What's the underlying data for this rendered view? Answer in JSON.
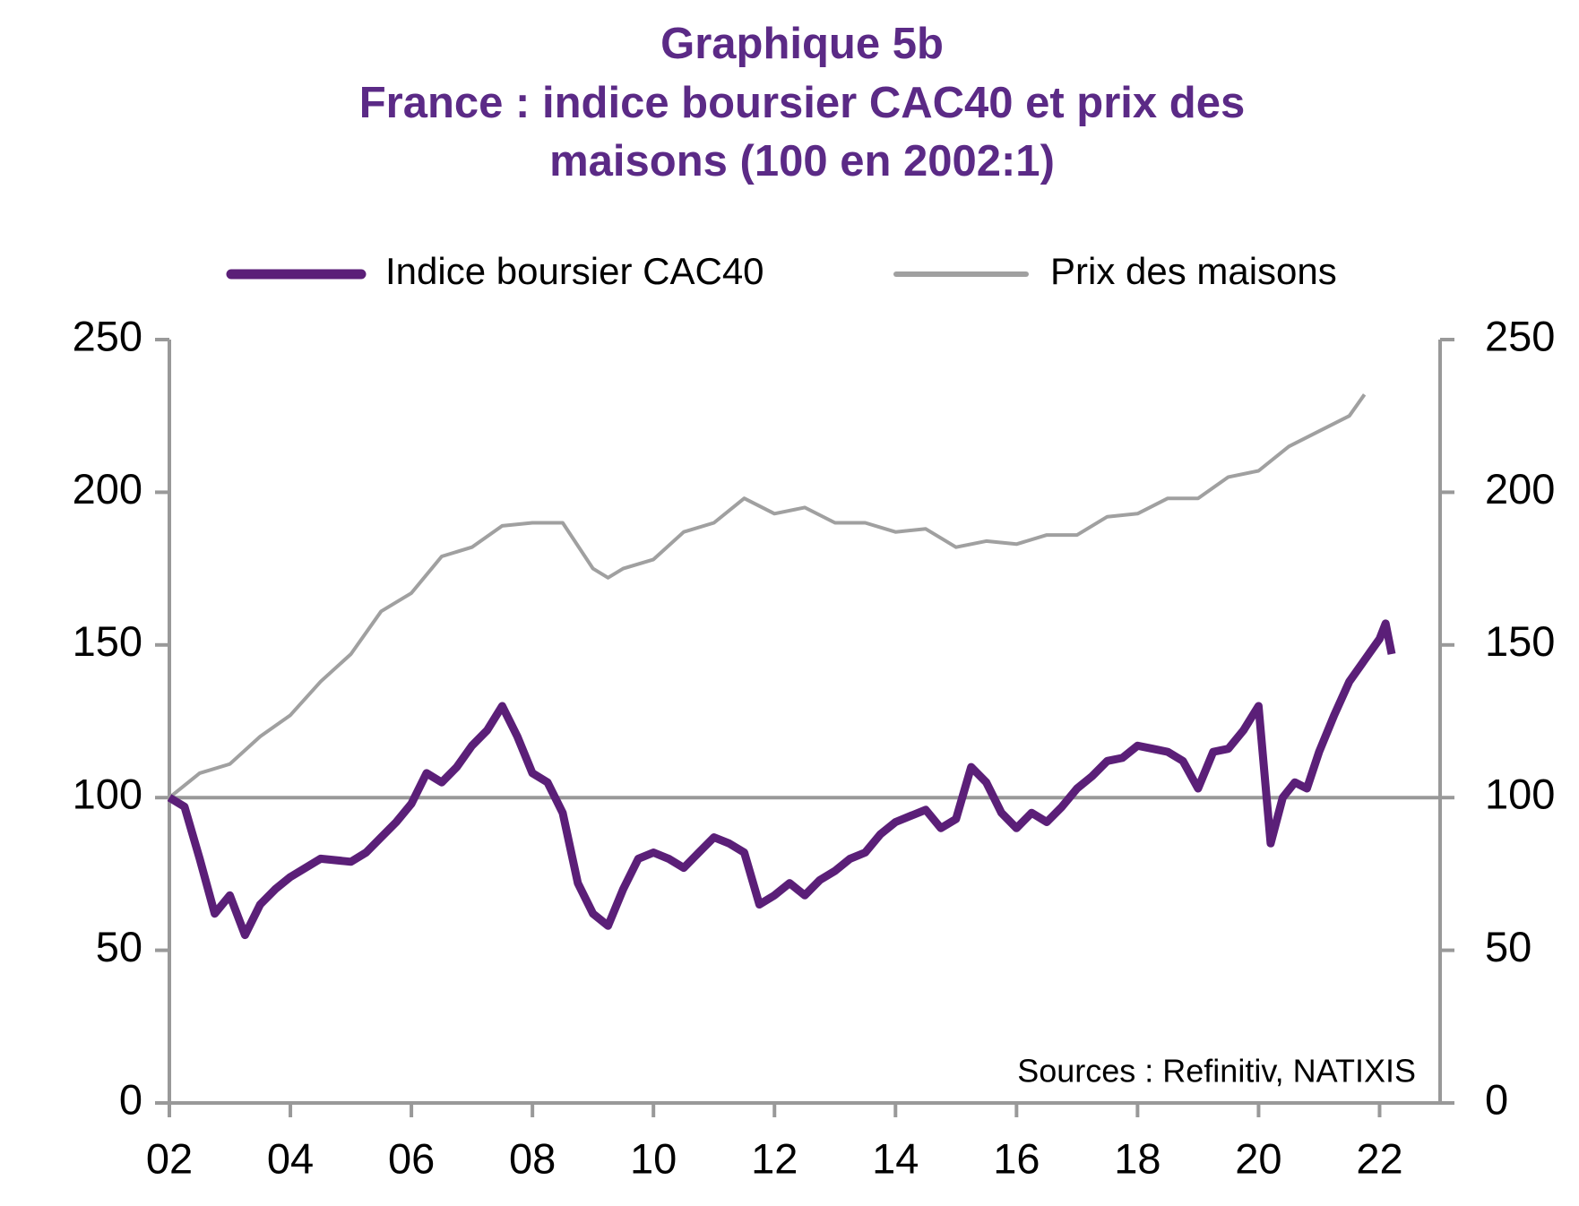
{
  "chart_data": {
    "type": "line",
    "title": [
      "Graphique 5b",
      "France : indice boursier CAC40 et prix des",
      "maisons (100 en 2002:1)"
    ],
    "annotation": "Sources : Refinitiv, NATIXIS",
    "legend": "top",
    "reference_line": 100,
    "reference_color": "#999999",
    "xlim": [
      2002,
      2023
    ],
    "xticks": [
      {
        "value": 2002,
        "label": "02"
      },
      {
        "value": 2004,
        "label": "04"
      },
      {
        "value": 2006,
        "label": "06"
      },
      {
        "value": 2008,
        "label": "08"
      },
      {
        "value": 2010,
        "label": "10"
      },
      {
        "value": 2012,
        "label": "12"
      },
      {
        "value": 2014,
        "label": "14"
      },
      {
        "value": 2016,
        "label": "16"
      },
      {
        "value": 2018,
        "label": "18"
      },
      {
        "value": 2020,
        "label": "20"
      },
      {
        "value": 2022,
        "label": "22"
      }
    ],
    "ylim": [
      0,
      250
    ],
    "yticks": [
      0,
      50,
      100,
      150,
      200,
      250
    ],
    "y2lim": [
      0,
      250
    ],
    "y2ticks": [
      0,
      50,
      100,
      150,
      200,
      250
    ],
    "series": [
      {
        "name": "Indice boursier CAC40",
        "color": "#5b1f78",
        "width": 9,
        "x": [
          2002,
          2002.25,
          2002.5,
          2002.75,
          2003,
          2003.25,
          2003.5,
          2003.75,
          2004,
          2004.5,
          2005,
          2005.25,
          2005.5,
          2005.75,
          2006,
          2006.25,
          2006.5,
          2006.75,
          2007,
          2007.25,
          2007.5,
          2007.75,
          2008,
          2008.25,
          2008.5,
          2008.75,
          2009,
          2009.25,
          2009.5,
          2009.75,
          2010,
          2010.25,
          2010.5,
          2010.75,
          2011,
          2011.25,
          2011.5,
          2011.75,
          2012,
          2012.25,
          2012.5,
          2012.75,
          2013,
          2013.25,
          2013.5,
          2013.75,
          2014,
          2014.25,
          2014.5,
          2014.75,
          2015,
          2015.25,
          2015.5,
          2015.75,
          2016,
          2016.25,
          2016.5,
          2016.75,
          2017,
          2017.25,
          2017.5,
          2017.75,
          2018,
          2018.25,
          2018.5,
          2018.75,
          2019,
          2019.25,
          2019.5,
          2019.75,
          2020,
          2020.2,
          2020.4,
          2020.6,
          2020.8,
          2021,
          2021.25,
          2021.5,
          2021.75,
          2022,
          2022.1,
          2022.2
        ],
        "values": [
          100,
          97,
          80,
          62,
          68,
          55,
          65,
          70,
          74,
          80,
          79,
          82,
          87,
          92,
          98,
          108,
          105,
          110,
          117,
          122,
          130,
          120,
          108,
          105,
          95,
          72,
          62,
          58,
          70,
          80,
          82,
          80,
          77,
          82,
          87,
          85,
          82,
          65,
          68,
          72,
          68,
          73,
          76,
          80,
          82,
          88,
          92,
          94,
          96,
          90,
          93,
          110,
          105,
          95,
          90,
          95,
          92,
          97,
          103,
          107,
          112,
          113,
          117,
          116,
          115,
          112,
          103,
          115,
          116,
          122,
          130,
          85,
          100,
          105,
          103,
          115,
          127,
          138,
          145,
          152,
          157,
          147
        ]
      },
      {
        "name": "Prix des maisons",
        "color": "#a0a0a0",
        "width": 4,
        "x": [
          2002,
          2002.5,
          2003,
          2003.5,
          2004,
          2004.5,
          2005,
          2005.5,
          2006,
          2006.5,
          2007,
          2007.5,
          2008,
          2008.5,
          2009,
          2009.25,
          2009.5,
          2010,
          2010.5,
          2011,
          2011.5,
          2012,
          2012.5,
          2013,
          2013.5,
          2014,
          2014.5,
          2015,
          2015.5,
          2016,
          2016.5,
          2017,
          2017.5,
          2018,
          2018.5,
          2019,
          2019.5,
          2020,
          2020.5,
          2021,
          2021.5,
          2021.75
        ],
        "values": [
          100,
          108,
          111,
          120,
          127,
          138,
          147,
          161,
          167,
          179,
          182,
          189,
          190,
          190,
          175,
          172,
          175,
          178,
          187,
          190,
          198,
          193,
          195,
          190,
          190,
          187,
          188,
          182,
          184,
          183,
          186,
          186,
          192,
          193,
          198,
          198,
          205,
          207,
          215,
          220,
          225,
          232
        ]
      }
    ]
  }
}
